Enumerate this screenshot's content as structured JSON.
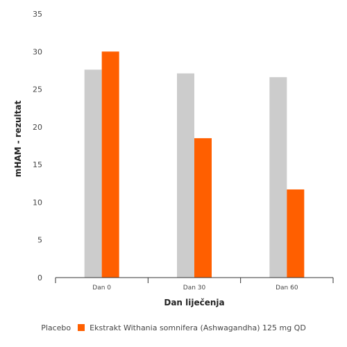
{
  "chart_data": {
    "type": "bar",
    "categories": [
      "Dan 0",
      "Dan 30",
      "Dan 60"
    ],
    "series": [
      {
        "name": "Placebo",
        "values": [
          27.6,
          27.1,
          26.6
        ],
        "color": "#cccccc"
      },
      {
        "name": "Ekstrakt Withania somnifera (Ashwagandha) 125 mg QD",
        "values": [
          30.0,
          18.5,
          11.7
        ],
        "color": "#ff5f00"
      }
    ],
    "xlabel": "Dan liječenja",
    "ylabel": "mHAM - rezultat",
    "ylim": [
      0,
      35
    ],
    "yticks": [
      0,
      5,
      10,
      15,
      20,
      25,
      30,
      35
    ],
    "grid": false,
    "legend_position": "bottom"
  }
}
